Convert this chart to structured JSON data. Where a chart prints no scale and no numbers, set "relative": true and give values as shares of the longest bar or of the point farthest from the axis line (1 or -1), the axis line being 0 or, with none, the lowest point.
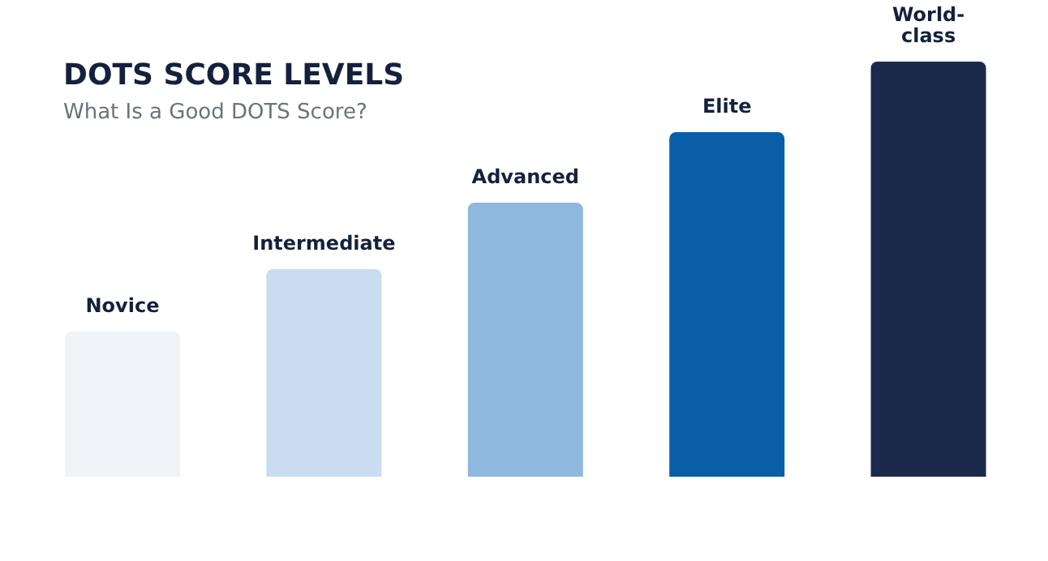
{
  "chart_data": {
    "type": "bar",
    "title": "DOTS SCORE LEVELS",
    "subtitle": "What Is a Good DOTS Score?",
    "relative": true,
    "categories": [
      "Novice",
      "Intermediate",
      "Advanced",
      "Elite",
      "World-class"
    ],
    "values": [
      0.35,
      0.5,
      0.66,
      0.83,
      1
    ],
    "colors": [
      "#f0f4f9",
      "#c9dcf0",
      "#8fb8df",
      "#0a5ea8",
      "#1b2a4b"
    ],
    "grid": false,
    "legend": false
  }
}
